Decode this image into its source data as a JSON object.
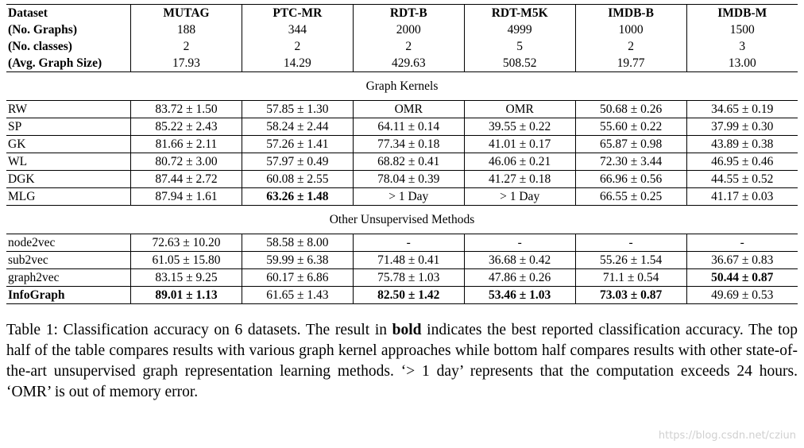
{
  "datasets_header": {
    "row_labels": [
      "Dataset",
      "(No. Graphs)",
      "(No. classes)",
      "(Avg. Graph Size)"
    ],
    "columns": [
      {
        "name": "MUTAG",
        "graphs": "188",
        "classes": "2",
        "avg_size": "17.93"
      },
      {
        "name": "PTC-MR",
        "graphs": "344",
        "classes": "2",
        "avg_size": "14.29"
      },
      {
        "name": "RDT-B",
        "graphs": "2000",
        "classes": "2",
        "avg_size": "429.63"
      },
      {
        "name": "RDT-M5K",
        "graphs": "4999",
        "classes": "5",
        "avg_size": "508.52"
      },
      {
        "name": "IMDB-B",
        "graphs": "1000",
        "classes": "2",
        "avg_size": "19.77"
      },
      {
        "name": "IMDB-M",
        "graphs": "1500",
        "classes": "3",
        "avg_size": "13.00"
      }
    ]
  },
  "sections": [
    {
      "title": "Graph Kernels",
      "rows": [
        {
          "method": "RW",
          "bold_method": false,
          "values": [
            {
              "text": "83.72 ± 1.50",
              "bold": false
            },
            {
              "text": "57.85 ± 1.30",
              "bold": false
            },
            {
              "text": "OMR",
              "bold": false
            },
            {
              "text": "OMR",
              "bold": false
            },
            {
              "text": "50.68 ± 0.26",
              "bold": false
            },
            {
              "text": "34.65 ± 0.19",
              "bold": false
            }
          ]
        },
        {
          "method": "SP",
          "bold_method": false,
          "values": [
            {
              "text": "85.22 ± 2.43",
              "bold": false
            },
            {
              "text": "58.24 ± 2.44",
              "bold": false
            },
            {
              "text": "64.11 ± 0.14",
              "bold": false
            },
            {
              "text": "39.55 ± 0.22",
              "bold": false
            },
            {
              "text": "55.60 ± 0.22",
              "bold": false
            },
            {
              "text": "37.99 ± 0.30",
              "bold": false
            }
          ]
        },
        {
          "method": "GK",
          "bold_method": false,
          "values": [
            {
              "text": "81.66 ± 2.11",
              "bold": false
            },
            {
              "text": "57.26 ± 1.41",
              "bold": false
            },
            {
              "text": "77.34 ± 0.18",
              "bold": false
            },
            {
              "text": "41.01 ± 0.17",
              "bold": false
            },
            {
              "text": "65.87 ± 0.98",
              "bold": false
            },
            {
              "text": "43.89 ± 0.38",
              "bold": false
            }
          ]
        },
        {
          "method": "WL",
          "bold_method": false,
          "values": [
            {
              "text": "80.72 ± 3.00",
              "bold": false
            },
            {
              "text": "57.97 ± 0.49",
              "bold": false
            },
            {
              "text": "68.82 ± 0.41",
              "bold": false
            },
            {
              "text": "46.06 ± 0.21",
              "bold": false
            },
            {
              "text": "72.30 ± 3.44",
              "bold": false
            },
            {
              "text": "46.95 ± 0.46",
              "bold": false
            }
          ]
        },
        {
          "method": "DGK",
          "bold_method": false,
          "values": [
            {
              "text": "87.44 ± 2.72",
              "bold": false
            },
            {
              "text": "60.08 ± 2.55",
              "bold": false
            },
            {
              "text": "78.04 ± 0.39",
              "bold": false
            },
            {
              "text": "41.27 ± 0.18",
              "bold": false
            },
            {
              "text": "66.96 ± 0.56",
              "bold": false
            },
            {
              "text": "44.55 ± 0.52",
              "bold": false
            }
          ]
        },
        {
          "method": "MLG",
          "bold_method": false,
          "values": [
            {
              "text": "87.94 ± 1.61",
              "bold": false
            },
            {
              "text": "63.26 ± 1.48",
              "bold": true
            },
            {
              "text": "> 1 Day",
              "bold": false
            },
            {
              "text": "> 1 Day",
              "bold": false
            },
            {
              "text": "66.55 ± 0.25",
              "bold": false
            },
            {
              "text": "41.17 ± 0.03",
              "bold": false
            }
          ]
        }
      ]
    },
    {
      "title": "Other Unsupervised Methods",
      "rows": [
        {
          "method": "node2vec",
          "bold_method": false,
          "values": [
            {
              "text": "72.63 ± 10.20",
              "bold": false
            },
            {
              "text": "58.58 ± 8.00",
              "bold": false
            },
            {
              "text": "-",
              "bold": false
            },
            {
              "text": "-",
              "bold": false
            },
            {
              "text": "-",
              "bold": false
            },
            {
              "text": "-",
              "bold": false
            }
          ]
        },
        {
          "method": "sub2vec",
          "bold_method": false,
          "values": [
            {
              "text": "61.05 ± 15.80",
              "bold": false
            },
            {
              "text": "59.99 ± 6.38",
              "bold": false
            },
            {
              "text": "71.48 ± 0.41",
              "bold": false
            },
            {
              "text": "36.68 ± 0.42",
              "bold": false
            },
            {
              "text": "55.26 ± 1.54",
              "bold": false
            },
            {
              "text": "36.67 ± 0.83",
              "bold": false
            }
          ]
        },
        {
          "method": "graph2vec",
          "bold_method": false,
          "values": [
            {
              "text": "83.15 ± 9.25",
              "bold": false
            },
            {
              "text": "60.17 ± 6.86",
              "bold": false
            },
            {
              "text": "75.78 ± 1.03",
              "bold": false
            },
            {
              "text": "47.86 ± 0.26",
              "bold": false
            },
            {
              "text": "71.1 ± 0.54",
              "bold": false
            },
            {
              "text": "50.44 ± 0.87",
              "bold": true
            }
          ]
        },
        {
          "method": "InfoGraph",
          "bold_method": true,
          "values": [
            {
              "text": "89.01 ± 1.13",
              "bold": true
            },
            {
              "text": "61.65 ± 1.43",
              "bold": false
            },
            {
              "text": "82.50 ± 1.42",
              "bold": true
            },
            {
              "text": "53.46 ± 1.03",
              "bold": true
            },
            {
              "text": "73.03 ± 0.87",
              "bold": true
            },
            {
              "text": "49.69 ± 0.53",
              "bold": false
            }
          ]
        }
      ]
    }
  ],
  "caption": {
    "part1": "Table 1: Classification accuracy on 6 datasets. The result in ",
    "bold_word": "bold",
    "part2": " indicates the best reported classification accuracy. The top half of the table compares results with various graph kernel approaches while bottom half compares results with other state-of-the-art unsupervised graph representation learning methods. ‘> 1 day’ represents that the computation exceeds 24 hours. ‘OMR’ is out of memory error."
  },
  "watermark": "https://blog.csdn.net/cziun"
}
